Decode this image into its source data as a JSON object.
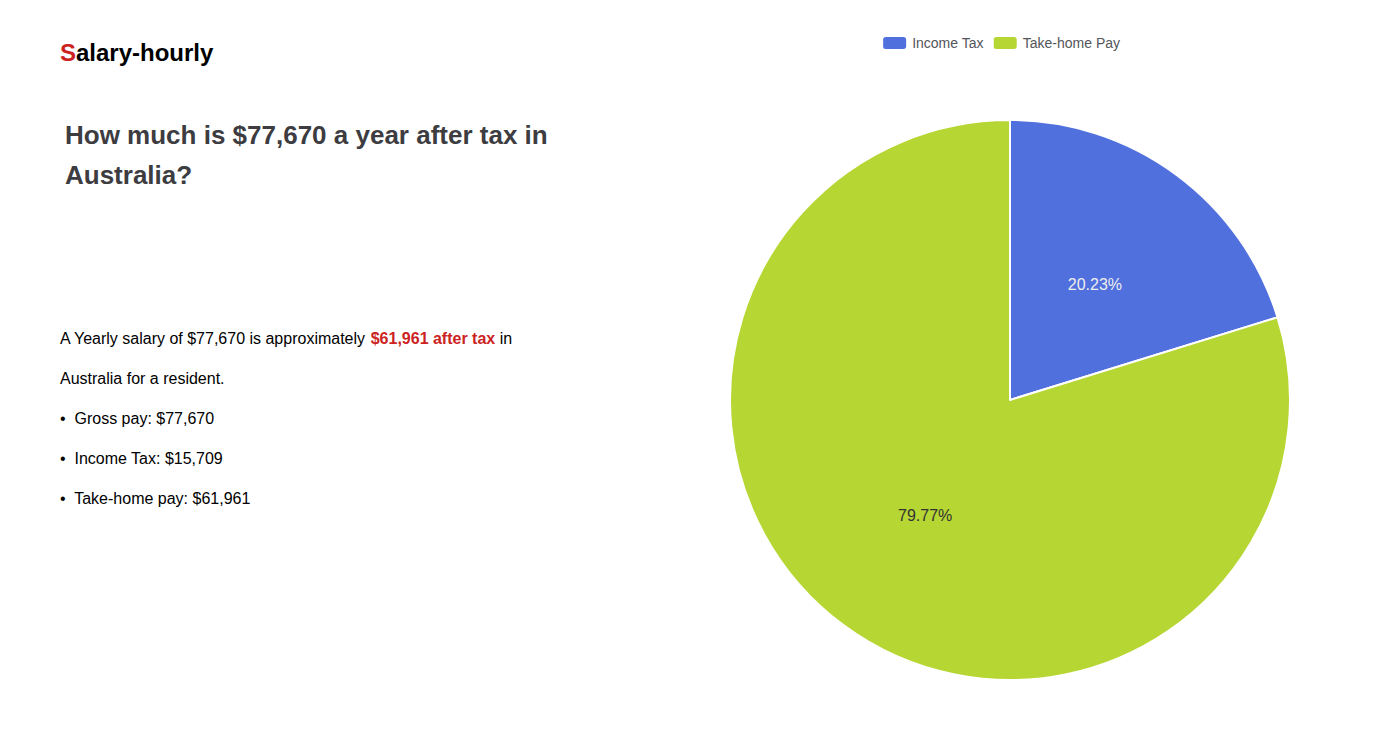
{
  "chart_data": {
    "type": "pie",
    "title": "How much is $77,670 a year after tax in\nAustralia?",
    "categories": [
      "Income Tax",
      "Take-home Pay"
    ],
    "values": [
      20.23,
      79.77
    ],
    "value_labels": [
      "20.23%",
      "79.77%"
    ],
    "data_labels": true,
    "legend": "top",
    "annotations": [
      [
        {
          "text": "S",
          "color": "#cc2222"
        },
        {
          "text": "alary-hourly"
        }
      ],
      [
        {
          "text": "A Yearly salary of $77,670 is approximately "
        },
        {
          "text": "$61,961 after tax",
          "color": "#cc2222"
        },
        {
          "text": " in"
        }
      ],
      [
        {
          "text": "Australia for a resident."
        }
      ],
      [
        {
          "text": "•  Gross pay: $77,670"
        }
      ],
      [
        {
          "text": "•  Income Tax: $15,709"
        }
      ],
      [
        {
          "text": "•  Take-home pay: $61,961"
        }
      ]
    ]
  }
}
